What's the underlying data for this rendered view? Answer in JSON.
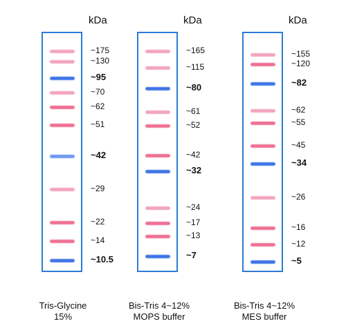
{
  "unit": "kDa",
  "colors": {
    "frame": "#2b7bd6",
    "pink": "#f3a4bd",
    "red": "#ee6f93",
    "blue": "#3e74e6",
    "blue_light": "#6d98ee"
  },
  "gels": [
    {
      "caption": [
        "Tris-Glycine",
        "15%"
      ],
      "bands": [
        {
          "label": "~175",
          "pos": 0.078,
          "color": "pink"
        },
        {
          "label": "~130",
          "pos": 0.122,
          "color": "pink"
        },
        {
          "label": "~95",
          "pos": 0.189,
          "color": "blue",
          "bold": true
        },
        {
          "label": "~70",
          "pos": 0.25,
          "color": "pink"
        },
        {
          "label": "~62",
          "pos": 0.311,
          "color": "red"
        },
        {
          "label": "~51",
          "pos": 0.386,
          "color": "red"
        },
        {
          "label": "~42",
          "pos": 0.514,
          "color": "blue_light",
          "bold": true
        },
        {
          "label": "~29",
          "pos": 0.653,
          "color": "pink"
        },
        {
          "label": "~22",
          "pos": 0.789,
          "color": "red"
        },
        {
          "label": "~14",
          "pos": 0.869,
          "color": "red"
        },
        {
          "label": "~10.5",
          "pos": 0.947,
          "color": "blue",
          "bold": true
        }
      ]
    },
    {
      "caption": [
        "Bis-Tris 4~12%",
        "MOPS buffer"
      ],
      "bands": [
        {
          "label": "~165",
          "pos": 0.078,
          "color": "pink"
        },
        {
          "label": "~115",
          "pos": 0.147,
          "color": "pink"
        },
        {
          "label": "~80",
          "pos": 0.233,
          "color": "blue",
          "bold": true
        },
        {
          "label": "~61",
          "pos": 0.331,
          "color": "pink"
        },
        {
          "label": "~52",
          "pos": 0.389,
          "color": "red"
        },
        {
          "label": "~42",
          "pos": 0.512,
          "color": "red"
        },
        {
          "label": "~32",
          "pos": 0.578,
          "color": "blue",
          "bold": true
        },
        {
          "label": "~24",
          "pos": 0.731,
          "color": "pink"
        },
        {
          "label": "~17",
          "pos": 0.794,
          "color": "red"
        },
        {
          "label": "~13",
          "pos": 0.847,
          "color": "red"
        },
        {
          "label": "~7",
          "pos": 0.931,
          "color": "blue",
          "bold": true
        }
      ]
    },
    {
      "caption": [
        "Bis-Tris 4~12%",
        "MES buffer"
      ],
      "bands": [
        {
          "label": "~155",
          "pos": 0.092,
          "color": "pink"
        },
        {
          "label": "~120",
          "pos": 0.133,
          "color": "red"
        },
        {
          "label": "~82",
          "pos": 0.214,
          "color": "blue",
          "bold": true
        },
        {
          "label": "~62",
          "pos": 0.325,
          "color": "pink"
        },
        {
          "label": "~55",
          "pos": 0.375,
          "color": "red"
        },
        {
          "label": "~45",
          "pos": 0.472,
          "color": "red"
        },
        {
          "label": "~34",
          "pos": 0.547,
          "color": "blue",
          "bold": true
        },
        {
          "label": "~26",
          "pos": 0.686,
          "color": "pink"
        },
        {
          "label": "~16",
          "pos": 0.814,
          "color": "red"
        },
        {
          "label": "~12",
          "pos": 0.883,
          "color": "red"
        },
        {
          "label": "~5",
          "pos": 0.953,
          "color": "blue",
          "bold": true
        }
      ]
    }
  ]
}
